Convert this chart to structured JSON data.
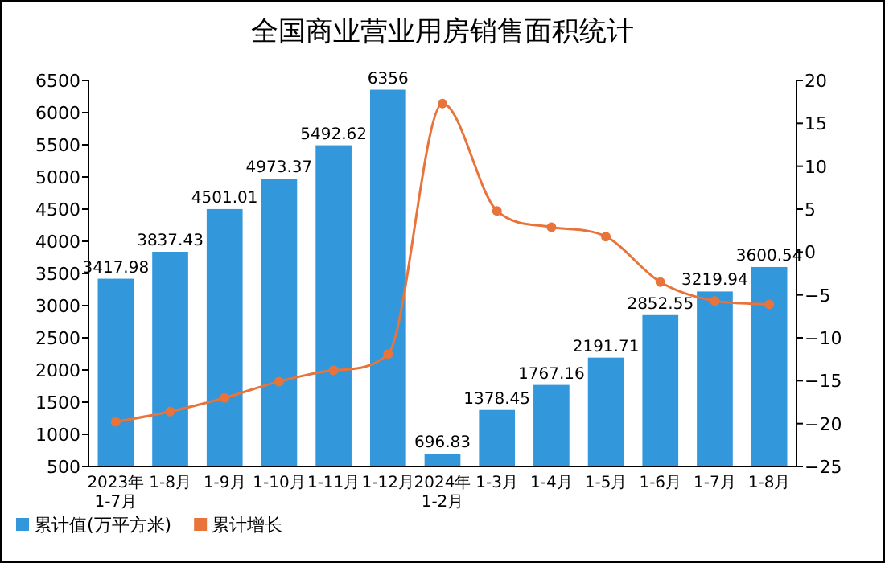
{
  "chart_data": {
    "type": "bar",
    "title": "全国商业营业用房销售面积统计",
    "categories": [
      "2023年\n1-7月",
      "1-8月",
      "1-9月",
      "1-10月",
      "1-11月",
      "1-12月",
      "2024年\n1-2月",
      "1-3月",
      "1-4月",
      "1-5月",
      "1-6月",
      "1-7月",
      "1-8月"
    ],
    "series": [
      {
        "name": "累计值(万平方米)",
        "color": "#3398db",
        "values": [
          3417.98,
          3837.43,
          4501.01,
          4973.37,
          5492.62,
          6356,
          696.83,
          1378.45,
          1767.16,
          2191.71,
          2852.55,
          3219.94,
          3600.54
        ],
        "value_labels": [
          "3417.98",
          "3837.43",
          "4501.01",
          "4973.37",
          "5492.62",
          "6356",
          "696.83",
          "1378.45",
          "1767.16",
          "2191.71",
          "2852.55",
          "3219.94",
          "3600.54"
        ]
      },
      {
        "name": "累计增长",
        "type": "line",
        "axis": "y2",
        "color": "#e8743b",
        "values": [
          -19.8,
          -18.6,
          -17,
          -15.1,
          -13.8,
          -11.9,
          17.3,
          4.8,
          2.9,
          1.8,
          -3.5,
          -5.7,
          -6.1
        ]
      }
    ],
    "ylim": [
      500,
      6500
    ],
    "yticks": [
      500,
      1000,
      1500,
      2000,
      2500,
      3000,
      3500,
      4000,
      4500,
      5000,
      5500,
      6000,
      6500
    ],
    "y2lim": [
      -25,
      20
    ],
    "y2ticks": [
      -25,
      -20,
      -15,
      -10,
      -5,
      0,
      5,
      10,
      15,
      20
    ],
    "marker": "circle",
    "legend": "bottom left",
    "grid": false
  }
}
